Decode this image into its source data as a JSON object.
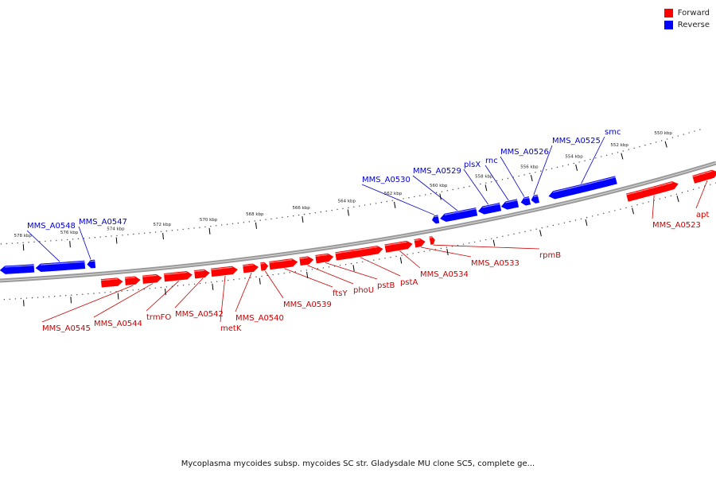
{
  "legend": {
    "forward_label": "Forward",
    "reverse_label": "Reverse",
    "forward_color": "#ff0000",
    "reverse_color": "#0000ff"
  },
  "caption": "Mycoplasma mycoides subsp. mycoides SC str. Gladysdale MU clone SC5, complete ge...",
  "colors": {
    "backbone": "#999999",
    "forward_label": "#cc0000",
    "reverse_label": "#0000cc",
    "tick": "#000000"
  },
  "kbp_ticks": [
    "550 kbp",
    "552 kbp",
    "554 kbp",
    "556 kbp",
    "558 kbp",
    "560 kbp",
    "562 kbp",
    "564 kbp",
    "566 kbp",
    "568 kbp",
    "570 kbp",
    "572 kbp",
    "574 kbp",
    "576 kbp",
    "578 kbp"
  ],
  "genes_forward": [
    "apt",
    "MMS_A0523",
    "rpmB",
    "MMS_A0533",
    "MMS_A0534",
    "pstA",
    "pstB",
    "phoU",
    "ftsY",
    "MMS_A0539",
    "MMS_A0540",
    "metK",
    "MMS_A0542",
    "trmFO",
    "MMS_A0544",
    "MMS_A0545"
  ],
  "genes_reverse": [
    "smc",
    "MMS_A0525",
    "MMS_A0526",
    "rnc",
    "plsX",
    "MMS_A0529",
    "MMS_A0530",
    "MMS_A0547",
    "MMS_A0548"
  ]
}
